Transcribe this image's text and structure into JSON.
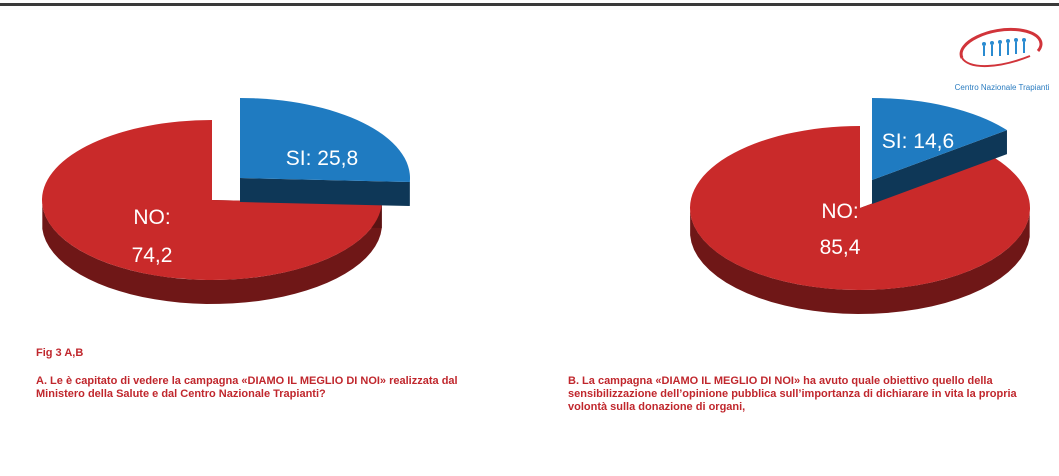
{
  "logo": {
    "name": "Centro Nazionale Trapianti",
    "text": "Centro Nazionale Trapianti"
  },
  "figure_label": "Fig 3 A,B",
  "captions": {
    "a": "A. Le è capitato di vedere la campagna «DIAMO IL MEGLIO DI NOI» realizzata dal Ministero della Salute e dal Centro Nazionale Trapianti?",
    "b": "B. La campagna «DIAMO IL MEGLIO DI NOI» ha avuto quale obiettivo quello della sensibilizzazione dell’opinione pubblica sull’importanza di dichiarare in vita la propria volontà sulla donazione di organi,"
  },
  "colors": {
    "no": "#c92a2a",
    "si": "#1f7bc1",
    "caption": "#c0272d",
    "logo": "#d1343a",
    "logo_figures": "#2a8bd0"
  },
  "chart_data": [
    {
      "type": "pie",
      "style": "3d-exploded",
      "slices": [
        {
          "label": "SI",
          "value": 25.8,
          "display": "SI: 25,8",
          "color": "#1f7bc1",
          "exploded": true
        },
        {
          "label": "NO",
          "value": 74.2,
          "display_line1": "NO:",
          "display_line2": "74,2",
          "color": "#c92a2a"
        }
      ]
    },
    {
      "type": "pie",
      "style": "3d-exploded",
      "slices": [
        {
          "label": "SI",
          "value": 14.6,
          "display": "SI: 14,6",
          "color": "#1f7bc1",
          "exploded": true
        },
        {
          "label": "NO",
          "value": 85.4,
          "display_line1": "NO:",
          "display_line2": "85,4",
          "color": "#c92a2a"
        }
      ]
    }
  ]
}
